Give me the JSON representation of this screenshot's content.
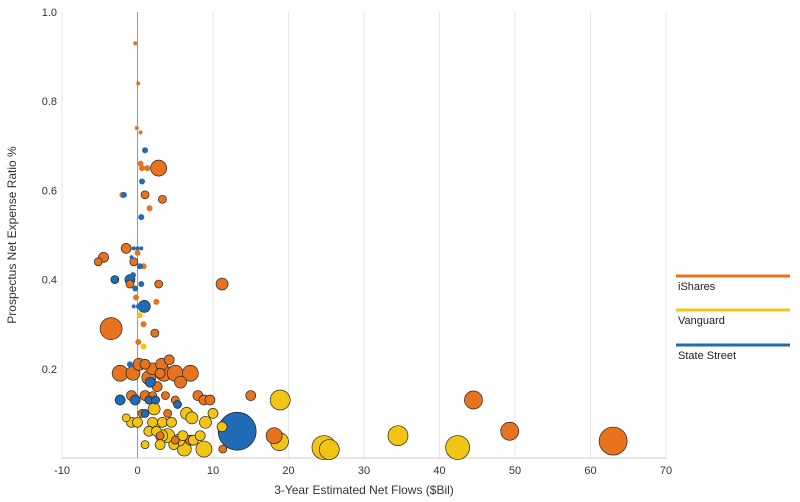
{
  "chart_data": {
    "type": "scatter",
    "title": "",
    "xlabel": "3-Year Estimated Net Flows ($Bil)",
    "ylabel": "Prospectus Net Expense Ratio %",
    "xlim": [
      -10,
      70
    ],
    "ylim": [
      0,
      1.0
    ],
    "x_ticks": [
      "-10",
      "0",
      "10",
      "20",
      "30",
      "40",
      "50",
      "60",
      "70"
    ],
    "y_ticks": [
      "0.2",
      "0.4",
      "0.6",
      "0.8",
      "1.0"
    ],
    "grid": "vertical",
    "legend_position": "right",
    "series": [
      {
        "name": "iShares",
        "color": "#E8731F",
        "points": [
          {
            "x": -0.3,
            "y": 0.93,
            "size": 2
          },
          {
            "x": 0.1,
            "y": 0.84,
            "size": 2
          },
          {
            "x": -0.1,
            "y": 0.74,
            "size": 2
          },
          {
            "x": 0.4,
            "y": 0.73,
            "size": 2
          },
          {
            "x": 0.4,
            "y": 0.66,
            "size": 3
          },
          {
            "x": 2.8,
            "y": 0.65,
            "size": 8
          },
          {
            "x": 0.6,
            "y": 0.65,
            "size": 3
          },
          {
            "x": 1.3,
            "y": 0.65,
            "size": 3
          },
          {
            "x": -2.0,
            "y": 0.59,
            "size": 3
          },
          {
            "x": 1.0,
            "y": 0.59,
            "size": 4
          },
          {
            "x": 3.3,
            "y": 0.58,
            "size": 4
          },
          {
            "x": 1.6,
            "y": 0.56,
            "size": 3
          },
          {
            "x": -4.5,
            "y": 0.45,
            "size": 5
          },
          {
            "x": -5.2,
            "y": 0.44,
            "size": 4
          },
          {
            "x": -1.5,
            "y": 0.47,
            "size": 5
          },
          {
            "x": 0.0,
            "y": 0.46,
            "size": 3
          },
          {
            "x": -0.5,
            "y": 0.44,
            "size": 4
          },
          {
            "x": 0.8,
            "y": 0.43,
            "size": 3
          },
          {
            "x": -1.0,
            "y": 0.39,
            "size": 4
          },
          {
            "x": 2.8,
            "y": 0.39,
            "size": 4
          },
          {
            "x": 11.2,
            "y": 0.39,
            "size": 6
          },
          {
            "x": -0.2,
            "y": 0.36,
            "size": 3
          },
          {
            "x": 2.5,
            "y": 0.35,
            "size": 3
          },
          {
            "x": -3.5,
            "y": 0.29,
            "size": 11
          },
          {
            "x": 0.8,
            "y": 0.3,
            "size": 3
          },
          {
            "x": 2.3,
            "y": 0.28,
            "size": 4
          },
          {
            "x": 0.1,
            "y": 0.26,
            "size": 3
          },
          {
            "x": -2.3,
            "y": 0.19,
            "size": 8
          },
          {
            "x": -0.6,
            "y": 0.19,
            "size": 7
          },
          {
            "x": 0.2,
            "y": 0.21,
            "size": 6
          },
          {
            "x": 1.0,
            "y": 0.21,
            "size": 5
          },
          {
            "x": 2.0,
            "y": 0.2,
            "size": 6
          },
          {
            "x": 3.2,
            "y": 0.21,
            "size": 6
          },
          {
            "x": 4.2,
            "y": 0.22,
            "size": 5
          },
          {
            "x": 1.5,
            "y": 0.18,
            "size": 7
          },
          {
            "x": 3.0,
            "y": 0.19,
            "size": 5
          },
          {
            "x": 3.5,
            "y": 0.19,
            "size": 8
          },
          {
            "x": 5.0,
            "y": 0.19,
            "size": 8
          },
          {
            "x": 7.0,
            "y": 0.19,
            "size": 8
          },
          {
            "x": 5.7,
            "y": 0.17,
            "size": 6
          },
          {
            "x": 2.6,
            "y": 0.16,
            "size": 5
          },
          {
            "x": -0.8,
            "y": 0.14,
            "size": 5
          },
          {
            "x": 1.0,
            "y": 0.14,
            "size": 5
          },
          {
            "x": 2.0,
            "y": 0.14,
            "size": 4
          },
          {
            "x": 3.7,
            "y": 0.14,
            "size": 4
          },
          {
            "x": 5.0,
            "y": 0.13,
            "size": 4
          },
          {
            "x": 8.0,
            "y": 0.14,
            "size": 5
          },
          {
            "x": 8.8,
            "y": 0.13,
            "size": 5
          },
          {
            "x": 9.6,
            "y": 0.13,
            "size": 5
          },
          {
            "x": 15.0,
            "y": 0.14,
            "size": 5
          },
          {
            "x": 0.6,
            "y": 0.1,
            "size": 4
          },
          {
            "x": 4.0,
            "y": 0.1,
            "size": 4
          },
          {
            "x": 3.0,
            "y": 0.05,
            "size": 4
          },
          {
            "x": 5.0,
            "y": 0.04,
            "size": 4
          },
          {
            "x": 7.0,
            "y": 0.04,
            "size": 5
          },
          {
            "x": 18.1,
            "y": 0.05,
            "size": 8
          },
          {
            "x": 44.5,
            "y": 0.13,
            "size": 9
          },
          {
            "x": 49.3,
            "y": 0.06,
            "size": 9
          },
          {
            "x": 63.0,
            "y": 0.02,
            "size": 14
          },
          {
            "x": 11.3,
            "y": 0.02,
            "size": 4
          }
        ]
      },
      {
        "name": "Vanguard",
        "color": "#F2C414",
        "points": [
          {
            "x": 0.3,
            "y": 0.32,
            "size": 3
          },
          {
            "x": 0.8,
            "y": 0.25,
            "size": 3
          },
          {
            "x": -1.5,
            "y": 0.09,
            "size": 4
          },
          {
            "x": -0.8,
            "y": 0.08,
            "size": 5
          },
          {
            "x": 0.0,
            "y": 0.08,
            "size": 5
          },
          {
            "x": 2.2,
            "y": 0.11,
            "size": 6
          },
          {
            "x": 2.0,
            "y": 0.08,
            "size": 5
          },
          {
            "x": 3.3,
            "y": 0.08,
            "size": 5
          },
          {
            "x": 4.5,
            "y": 0.08,
            "size": 5
          },
          {
            "x": 6.5,
            "y": 0.1,
            "size": 6
          },
          {
            "x": 7.2,
            "y": 0.09,
            "size": 6
          },
          {
            "x": 9.0,
            "y": 0.08,
            "size": 6
          },
          {
            "x": 10.0,
            "y": 0.1,
            "size": 5
          },
          {
            "x": 1.5,
            "y": 0.06,
            "size": 5
          },
          {
            "x": 2.5,
            "y": 0.06,
            "size": 5
          },
          {
            "x": 3.2,
            "y": 0.05,
            "size": 6
          },
          {
            "x": 4.0,
            "y": 0.05,
            "size": 7
          },
          {
            "x": 5.5,
            "y": 0.04,
            "size": 6
          },
          {
            "x": 6.0,
            "y": 0.05,
            "size": 5
          },
          {
            "x": 1.0,
            "y": 0.03,
            "size": 4
          },
          {
            "x": 3.0,
            "y": 0.03,
            "size": 5
          },
          {
            "x": 4.8,
            "y": 0.03,
            "size": 5
          },
          {
            "x": 6.2,
            "y": 0.02,
            "size": 7
          },
          {
            "x": 7.4,
            "y": 0.04,
            "size": 5
          },
          {
            "x": 8.3,
            "y": 0.05,
            "size": 5
          },
          {
            "x": 8.8,
            "y": 0.02,
            "size": 8
          },
          {
            "x": 11.2,
            "y": 0.07,
            "size": 5
          },
          {
            "x": 18.9,
            "y": 0.13,
            "size": 10
          },
          {
            "x": 18.8,
            "y": 0.03,
            "size": 9
          },
          {
            "x": 24.7,
            "y": 0.01,
            "size": 12
          },
          {
            "x": 25.4,
            "y": 0.01,
            "size": 10
          },
          {
            "x": 34.5,
            "y": 0.05,
            "size": 10
          },
          {
            "x": 42.4,
            "y": 0.01,
            "size": 12
          }
        ]
      },
      {
        "name": "State Street",
        "color": "#1F6BB5",
        "points": [
          {
            "x": 1.0,
            "y": 0.69,
            "size": 3
          },
          {
            "x": 0.6,
            "y": 0.62,
            "size": 3
          },
          {
            "x": 0.5,
            "y": 0.54,
            "size": 3
          },
          {
            "x": -1.8,
            "y": 0.59,
            "size": 3
          },
          {
            "x": -0.5,
            "y": 0.47,
            "size": 2
          },
          {
            "x": 0.0,
            "y": 0.47,
            "size": 2
          },
          {
            "x": 0.5,
            "y": 0.47,
            "size": 2
          },
          {
            "x": -0.8,
            "y": 0.45,
            "size": 2
          },
          {
            "x": 0.3,
            "y": 0.43,
            "size": 3
          },
          {
            "x": -1.0,
            "y": 0.4,
            "size": 5
          },
          {
            "x": -0.6,
            "y": 0.41,
            "size": 3
          },
          {
            "x": -3.0,
            "y": 0.4,
            "size": 4
          },
          {
            "x": -0.3,
            "y": 0.38,
            "size": 3
          },
          {
            "x": 0.5,
            "y": 0.39,
            "size": 3
          },
          {
            "x": 0.9,
            "y": 0.34,
            "size": 6
          },
          {
            "x": 0.2,
            "y": 0.34,
            "size": 3
          },
          {
            "x": -0.5,
            "y": 0.34,
            "size": 2
          },
          {
            "x": -1.0,
            "y": 0.21,
            "size": 3
          },
          {
            "x": 1.7,
            "y": 0.17,
            "size": 5
          },
          {
            "x": -2.3,
            "y": 0.13,
            "size": 5
          },
          {
            "x": -0.3,
            "y": 0.13,
            "size": 5
          },
          {
            "x": 1.5,
            "y": 0.13,
            "size": 4
          },
          {
            "x": 2.4,
            "y": 0.13,
            "size": 4
          },
          {
            "x": 5.3,
            "y": 0.12,
            "size": 4
          },
          {
            "x": 1.0,
            "y": 0.1,
            "size": 4
          },
          {
            "x": 13.2,
            "y": 0.06,
            "size": 19
          }
        ]
      }
    ]
  }
}
